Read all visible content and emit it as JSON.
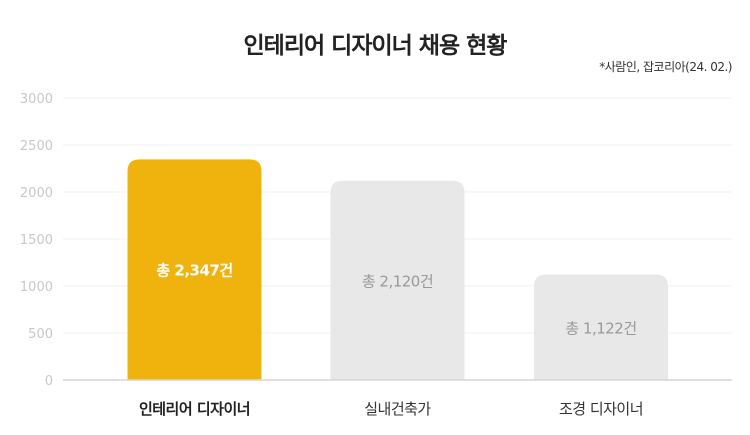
{
  "chart_data": {
    "type": "bar",
    "title": "인테리어 디자이너 채용 현황",
    "source_note": "*사람인, 잡코리아(24. 02.)",
    "categories": [
      "인테리어 디자이너",
      "실내건축가",
      "조경 디자이너"
    ],
    "values": [
      2347,
      2120,
      1122
    ],
    "data_labels": [
      "총 2,347건",
      "총 2,120건",
      "총 1,122건"
    ],
    "highlighted_index": 0,
    "ylim": [
      0,
      3000
    ],
    "yticks": [
      0,
      500,
      1000,
      1500,
      2000,
      2500,
      3000
    ],
    "grid": true,
    "xlabel": "",
    "ylabel": "",
    "colors": {
      "highlight": "#F0B30E",
      "default": "#E8E8E8",
      "highlight_label": "#FFFFFF",
      "default_label": "#999999"
    }
  }
}
